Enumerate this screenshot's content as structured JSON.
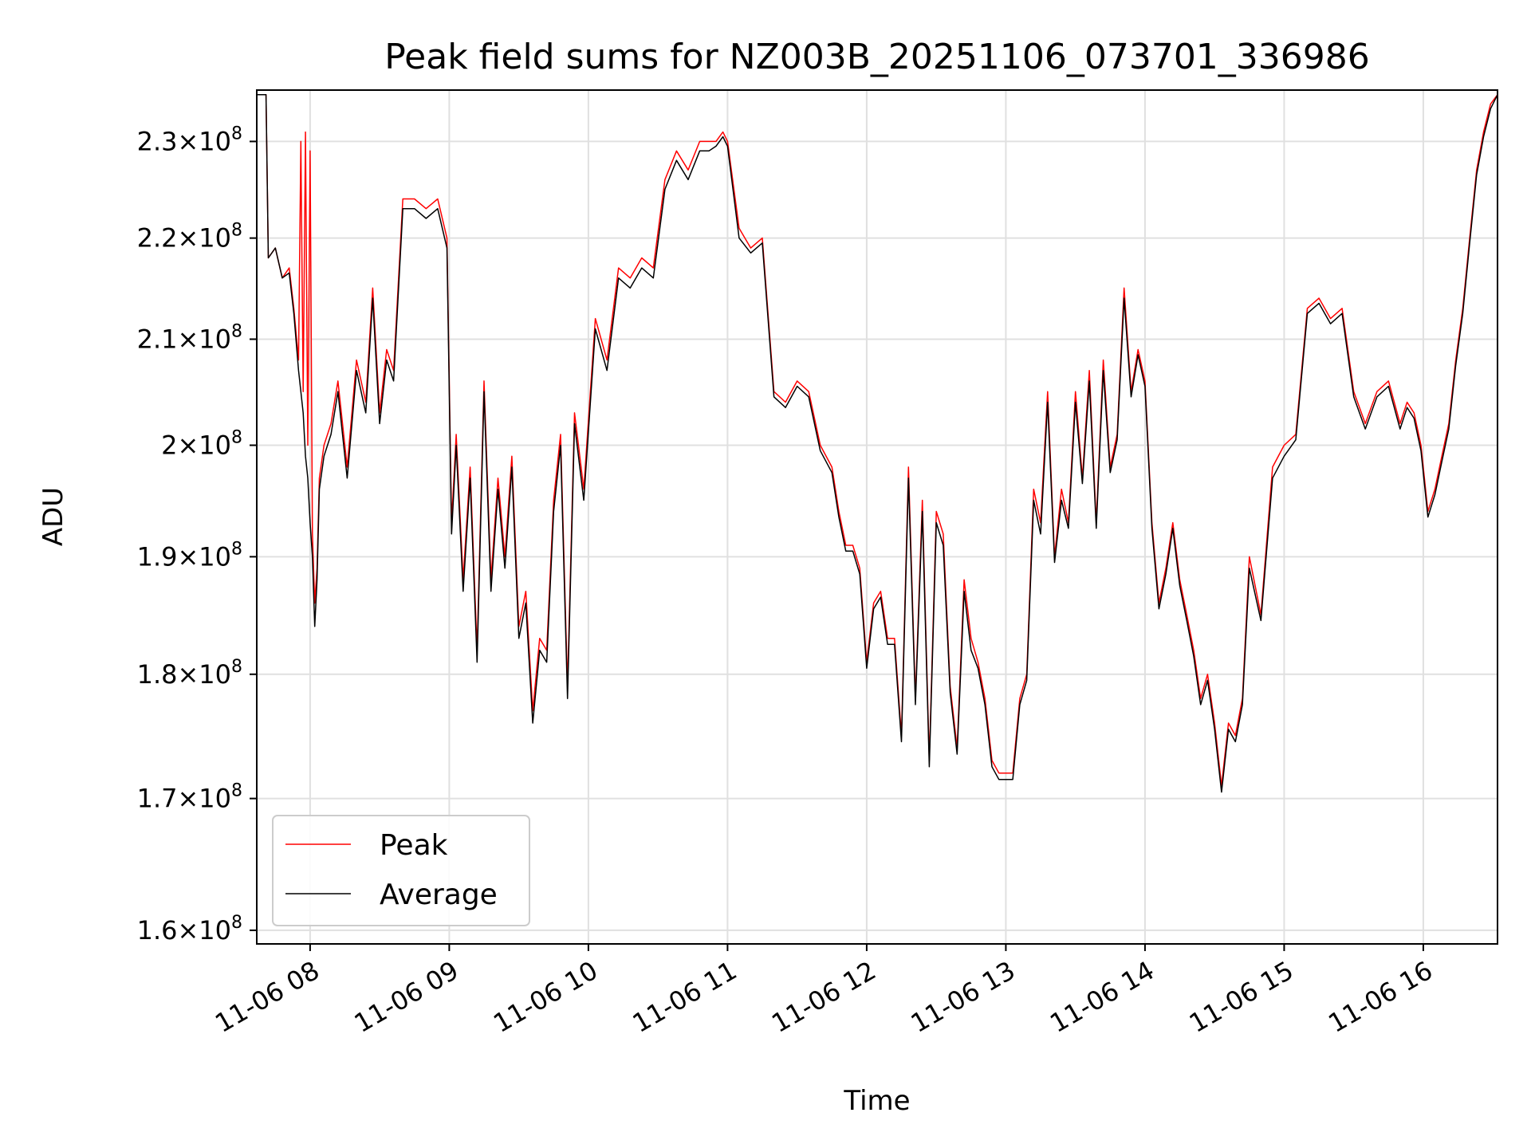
{
  "chart_data": {
    "type": "line",
    "title": "Peak field sums for NZ003B_20251106_073701_336986",
    "xlabel": "Time",
    "ylabel": "ADU",
    "y_scale": "log",
    "ylim": [
      159000000,
      235500000
    ],
    "xlim": [
      "2025-11-06 07:37",
      "2025-11-06 16:32"
    ],
    "grid": true,
    "legend_position": "lower-left",
    "colors": {
      "Peak": "#ff0000",
      "Average": "#000000"
    },
    "y_ticks": [
      {
        "value": 160000000,
        "base": "1.6",
        "exp": "8"
      },
      {
        "value": 170000000,
        "base": "1.7",
        "exp": "8"
      },
      {
        "value": 180000000,
        "base": "1.8",
        "exp": "8"
      },
      {
        "value": 190000000,
        "base": "1.9",
        "exp": "8"
      },
      {
        "value": 200000000,
        "base": "2",
        "exp": "8"
      },
      {
        "value": 210000000,
        "base": "2.1",
        "exp": "8"
      },
      {
        "value": 220000000,
        "base": "2.2",
        "exp": "8"
      },
      {
        "value": 230000000,
        "base": "2.3",
        "exp": "8"
      }
    ],
    "x_ticks": [
      {
        "value": "2025-11-06 08:00",
        "label": "11-06 08"
      },
      {
        "value": "2025-11-06 09:00",
        "label": "11-06 09"
      },
      {
        "value": "2025-11-06 10:00",
        "label": "11-06 10"
      },
      {
        "value": "2025-11-06 11:00",
        "label": "11-06 11"
      },
      {
        "value": "2025-11-06 12:00",
        "label": "11-06 12"
      },
      {
        "value": "2025-11-06 13:00",
        "label": "11-06 13"
      },
      {
        "value": "2025-11-06 14:00",
        "label": "11-06 14"
      },
      {
        "value": "2025-11-06 15:00",
        "label": "11-06 15"
      },
      {
        "value": "2025-11-06 16:00",
        "label": "11-06 16"
      }
    ],
    "series": [
      {
        "name": "Peak",
        "x": [
          "2025-11-06 07:37",
          "2025-11-06 07:41",
          "2025-11-06 07:42",
          "2025-11-06 07:45",
          "2025-11-06 07:48",
          "2025-11-06 07:51",
          "2025-11-06 07:53",
          "2025-11-06 07:55",
          "2025-11-06 07:56",
          "2025-11-06 07:57",
          "2025-11-06 07:58",
          "2025-11-06 07:59",
          "2025-11-06 08:00",
          "2025-11-06 08:01",
          "2025-11-06 08:02",
          "2025-11-06 08:03",
          "2025-11-06 08:04",
          "2025-11-06 08:06",
          "2025-11-06 08:09",
          "2025-11-06 08:12",
          "2025-11-06 08:16",
          "2025-11-06 08:20",
          "2025-11-06 08:24",
          "2025-11-06 08:27",
          "2025-11-06 08:30",
          "2025-11-06 08:33",
          "2025-11-06 08:36",
          "2025-11-06 08:40",
          "2025-11-06 08:45",
          "2025-11-06 08:50",
          "2025-11-06 08:55",
          "2025-11-06 08:59",
          "2025-11-06 09:01",
          "2025-11-06 09:03",
          "2025-11-06 09:06",
          "2025-11-06 09:09",
          "2025-11-06 09:12",
          "2025-11-06 09:15",
          "2025-11-06 09:18",
          "2025-11-06 09:21",
          "2025-11-06 09:24",
          "2025-11-06 09:27",
          "2025-11-06 09:30",
          "2025-11-06 09:33",
          "2025-11-06 09:36",
          "2025-11-06 09:39",
          "2025-11-06 09:42",
          "2025-11-06 09:45",
          "2025-11-06 09:48",
          "2025-11-06 09:51",
          "2025-11-06 09:54",
          "2025-11-06 09:58",
          "2025-11-06 10:03",
          "2025-11-06 10:08",
          "2025-11-06 10:13",
          "2025-11-06 10:18",
          "2025-11-06 10:23",
          "2025-11-06 10:28",
          "2025-11-06 10:33",
          "2025-11-06 10:38",
          "2025-11-06 10:43",
          "2025-11-06 10:48",
          "2025-11-06 10:52",
          "2025-11-06 10:55",
          "2025-11-06 10:58",
          "2025-11-06 11:00",
          "2025-11-06 11:05",
          "2025-11-06 11:10",
          "2025-11-06 11:15",
          "2025-11-06 11:20",
          "2025-11-06 11:25",
          "2025-11-06 11:30",
          "2025-11-06 11:35",
          "2025-11-06 11:40",
          "2025-11-06 11:45",
          "2025-11-06 11:48",
          "2025-11-06 11:51",
          "2025-11-06 11:54",
          "2025-11-06 11:57",
          "2025-11-06 12:00",
          "2025-11-06 12:03",
          "2025-11-06 12:06",
          "2025-11-06 12:09",
          "2025-11-06 12:12",
          "2025-11-06 12:15",
          "2025-11-06 12:18",
          "2025-11-06 12:21",
          "2025-11-06 12:24",
          "2025-11-06 12:27",
          "2025-11-06 12:30",
          "2025-11-06 12:33",
          "2025-11-06 12:36",
          "2025-11-06 12:39",
          "2025-11-06 12:42",
          "2025-11-06 12:45",
          "2025-11-06 12:48",
          "2025-11-06 12:51",
          "2025-11-06 12:54",
          "2025-11-06 12:57",
          "2025-11-06 13:00",
          "2025-11-06 13:03",
          "2025-11-06 13:06",
          "2025-11-06 13:09",
          "2025-11-06 13:12",
          "2025-11-06 13:15",
          "2025-11-06 13:18",
          "2025-11-06 13:21",
          "2025-11-06 13:24",
          "2025-11-06 13:27",
          "2025-11-06 13:30",
          "2025-11-06 13:33",
          "2025-11-06 13:36",
          "2025-11-06 13:39",
          "2025-11-06 13:42",
          "2025-11-06 13:45",
          "2025-11-06 13:48",
          "2025-11-06 13:51",
          "2025-11-06 13:54",
          "2025-11-06 13:57",
          "2025-11-06 14:00",
          "2025-11-06 14:03",
          "2025-11-06 14:06",
          "2025-11-06 14:09",
          "2025-11-06 14:12",
          "2025-11-06 14:15",
          "2025-11-06 14:18",
          "2025-11-06 14:21",
          "2025-11-06 14:24",
          "2025-11-06 14:27",
          "2025-11-06 14:30",
          "2025-11-06 14:33",
          "2025-11-06 14:36",
          "2025-11-06 14:39",
          "2025-11-06 14:42",
          "2025-11-06 14:45",
          "2025-11-06 14:50",
          "2025-11-06 14:55",
          "2025-11-06 15:00",
          "2025-11-06 15:05",
          "2025-11-06 15:10",
          "2025-11-06 15:15",
          "2025-11-06 15:20",
          "2025-11-06 15:25",
          "2025-11-06 15:30",
          "2025-11-06 15:35",
          "2025-11-06 15:40",
          "2025-11-06 15:45",
          "2025-11-06 15:50",
          "2025-11-06 15:53",
          "2025-11-06 15:56",
          "2025-11-06 15:59",
          "2025-11-06 16:02",
          "2025-11-06 16:05",
          "2025-11-06 16:08",
          "2025-11-06 16:11",
          "2025-11-06 16:14",
          "2025-11-06 16:17",
          "2025-11-06 16:20",
          "2025-11-06 16:23",
          "2025-11-06 16:26",
          "2025-11-06 16:29",
          "2025-11-06 16:32"
        ],
        "values": [
          235000000,
          235000000,
          218000000,
          219000000,
          216000000,
          217000000,
          213000000,
          208000000,
          230000000,
          205000000,
          231000000,
          200000000,
          229000000,
          192000000,
          186000000,
          189000000,
          197000000,
          200000000,
          202000000,
          206000000,
          198000000,
          208000000,
          204000000,
          215000000,
          203000000,
          209000000,
          207000000,
          224000000,
          224000000,
          223000000,
          224000000,
          220000000,
          193000000,
          201000000,
          188000000,
          198000000,
          182000000,
          206000000,
          188000000,
          197000000,
          190000000,
          199000000,
          184000000,
          187000000,
          177000000,
          183000000,
          182000000,
          195000000,
          201000000,
          179000000,
          203000000,
          196000000,
          212000000,
          208000000,
          217000000,
          216000000,
          218000000,
          217000000,
          226000000,
          229000000,
          227000000,
          230000000,
          230000000,
          230000000,
          231000000,
          230000000,
          221000000,
          219000000,
          220000000,
          205000000,
          204000000,
          206000000,
          205000000,
          200000000,
          198000000,
          194000000,
          191000000,
          191000000,
          189000000,
          181000000,
          186000000,
          187000000,
          183000000,
          183000000,
          175000000,
          198000000,
          178000000,
          195000000,
          173000000,
          194000000,
          192000000,
          179000000,
          174000000,
          188000000,
          183000000,
          181000000,
          178000000,
          173000000,
          172000000,
          172000000,
          172000000,
          178000000,
          180000000,
          196000000,
          193000000,
          205000000,
          190000000,
          196000000,
          193000000,
          205000000,
          197000000,
          207000000,
          193000000,
          208000000,
          198000000,
          201000000,
          215000000,
          205000000,
          209000000,
          206000000,
          193000000,
          186000000,
          189000000,
          193000000,
          188000000,
          185000000,
          182000000,
          178000000,
          180000000,
          176000000,
          171000000,
          176000000,
          175000000,
          178000000,
          190000000,
          185000000,
          198000000,
          200000000,
          201000000,
          213000000,
          214000000,
          212000000,
          213000000,
          205000000,
          202000000,
          205000000,
          206000000,
          202000000,
          204000000,
          203000000,
          200000000,
          194000000,
          196000000,
          199000000,
          202000000,
          208000000,
          213000000,
          220000000,
          227000000,
          231000000,
          234000000,
          235000000
        ]
      },
      {
        "name": "Average",
        "x": [
          "2025-11-06 07:37",
          "2025-11-06 07:41",
          "2025-11-06 07:42",
          "2025-11-06 07:45",
          "2025-11-06 07:48",
          "2025-11-06 07:51",
          "2025-11-06 07:53",
          "2025-11-06 07:55",
          "2025-11-06 07:56",
          "2025-11-06 07:57",
          "2025-11-06 07:58",
          "2025-11-06 07:59",
          "2025-11-06 08:00",
          "2025-11-06 08:01",
          "2025-11-06 08:02",
          "2025-11-06 08:03",
          "2025-11-06 08:04",
          "2025-11-06 08:06",
          "2025-11-06 08:09",
          "2025-11-06 08:12",
          "2025-11-06 08:16",
          "2025-11-06 08:20",
          "2025-11-06 08:24",
          "2025-11-06 08:27",
          "2025-11-06 08:30",
          "2025-11-06 08:33",
          "2025-11-06 08:36",
          "2025-11-06 08:40",
          "2025-11-06 08:45",
          "2025-11-06 08:50",
          "2025-11-06 08:55",
          "2025-11-06 08:59",
          "2025-11-06 09:01",
          "2025-11-06 09:03",
          "2025-11-06 09:06",
          "2025-11-06 09:09",
          "2025-11-06 09:12",
          "2025-11-06 09:15",
          "2025-11-06 09:18",
          "2025-11-06 09:21",
          "2025-11-06 09:24",
          "2025-11-06 09:27",
          "2025-11-06 09:30",
          "2025-11-06 09:33",
          "2025-11-06 09:36",
          "2025-11-06 09:39",
          "2025-11-06 09:42",
          "2025-11-06 09:45",
          "2025-11-06 09:48",
          "2025-11-06 09:51",
          "2025-11-06 09:54",
          "2025-11-06 09:58",
          "2025-11-06 10:03",
          "2025-11-06 10:08",
          "2025-11-06 10:13",
          "2025-11-06 10:18",
          "2025-11-06 10:23",
          "2025-11-06 10:28",
          "2025-11-06 10:33",
          "2025-11-06 10:38",
          "2025-11-06 10:43",
          "2025-11-06 10:48",
          "2025-11-06 10:52",
          "2025-11-06 10:55",
          "2025-11-06 10:58",
          "2025-11-06 11:00",
          "2025-11-06 11:05",
          "2025-11-06 11:10",
          "2025-11-06 11:15",
          "2025-11-06 11:20",
          "2025-11-06 11:25",
          "2025-11-06 11:30",
          "2025-11-06 11:35",
          "2025-11-06 11:40",
          "2025-11-06 11:45",
          "2025-11-06 11:48",
          "2025-11-06 11:51",
          "2025-11-06 11:54",
          "2025-11-06 11:57",
          "2025-11-06 12:00",
          "2025-11-06 12:03",
          "2025-11-06 12:06",
          "2025-11-06 12:09",
          "2025-11-06 12:12",
          "2025-11-06 12:15",
          "2025-11-06 12:18",
          "2025-11-06 12:21",
          "2025-11-06 12:24",
          "2025-11-06 12:27",
          "2025-11-06 12:30",
          "2025-11-06 12:33",
          "2025-11-06 12:36",
          "2025-11-06 12:39",
          "2025-11-06 12:42",
          "2025-11-06 12:45",
          "2025-11-06 12:48",
          "2025-11-06 12:51",
          "2025-11-06 12:54",
          "2025-11-06 12:57",
          "2025-11-06 13:00",
          "2025-11-06 13:03",
          "2025-11-06 13:06",
          "2025-11-06 13:09",
          "2025-11-06 13:12",
          "2025-11-06 13:15",
          "2025-11-06 13:18",
          "2025-11-06 13:21",
          "2025-11-06 13:24",
          "2025-11-06 13:27",
          "2025-11-06 13:30",
          "2025-11-06 13:33",
          "2025-11-06 13:36",
          "2025-11-06 13:39",
          "2025-11-06 13:42",
          "2025-11-06 13:45",
          "2025-11-06 13:48",
          "2025-11-06 13:51",
          "2025-11-06 13:54",
          "2025-11-06 13:57",
          "2025-11-06 14:00",
          "2025-11-06 14:03",
          "2025-11-06 14:06",
          "2025-11-06 14:09",
          "2025-11-06 14:12",
          "2025-11-06 14:15",
          "2025-11-06 14:18",
          "2025-11-06 14:21",
          "2025-11-06 14:24",
          "2025-11-06 14:27",
          "2025-11-06 14:30",
          "2025-11-06 14:33",
          "2025-11-06 14:36",
          "2025-11-06 14:39",
          "2025-11-06 14:42",
          "2025-11-06 14:45",
          "2025-11-06 14:50",
          "2025-11-06 14:55",
          "2025-11-06 15:00",
          "2025-11-06 15:05",
          "2025-11-06 15:10",
          "2025-11-06 15:15",
          "2025-11-06 15:20",
          "2025-11-06 15:25",
          "2025-11-06 15:30",
          "2025-11-06 15:35",
          "2025-11-06 15:40",
          "2025-11-06 15:45",
          "2025-11-06 15:50",
          "2025-11-06 15:53",
          "2025-11-06 15:56",
          "2025-11-06 15:59",
          "2025-11-06 16:02",
          "2025-11-06 16:05",
          "2025-11-06 16:08",
          "2025-11-06 16:11",
          "2025-11-06 16:14",
          "2025-11-06 16:17",
          "2025-11-06 16:20",
          "2025-11-06 16:23",
          "2025-11-06 16:26",
          "2025-11-06 16:29",
          "2025-11-06 16:32"
        ],
        "values": [
          235000000,
          235000000,
          218000000,
          219000000,
          216000000,
          216500000,
          212500000,
          207000000,
          205000000,
          203000000,
          199000000,
          197000000,
          193000000,
          190000000,
          184000000,
          188000000,
          196000000,
          199000000,
          201000000,
          205000000,
          197000000,
          207000000,
          203000000,
          214000000,
          202000000,
          208000000,
          206000000,
          223000000,
          223000000,
          222000000,
          223000000,
          219000000,
          192000000,
          200000000,
          187000000,
          197000000,
          181000000,
          205000000,
          187000000,
          196000000,
          189000000,
          198000000,
          183000000,
          186000000,
          176000000,
          182000000,
          181000000,
          194000000,
          200000000,
          178000000,
          202000000,
          195000000,
          211000000,
          207000000,
          216000000,
          215000000,
          217000000,
          216000000,
          225000000,
          228000000,
          226000000,
          229000000,
          229000000,
          229500000,
          230500000,
          229500000,
          220000000,
          218500000,
          219500000,
          204500000,
          203500000,
          205500000,
          204500000,
          199500000,
          197500000,
          193500000,
          190500000,
          190500000,
          188500000,
          180500000,
          185500000,
          186500000,
          182500000,
          182500000,
          174500000,
          197000000,
          177500000,
          194000000,
          172500000,
          193000000,
          191000000,
          178500000,
          173500000,
          187000000,
          182000000,
          180500000,
          177500000,
          172500000,
          171500000,
          171500000,
          171500000,
          177500000,
          179500000,
          195000000,
          192000000,
          204000000,
          189500000,
          195000000,
          192500000,
          204000000,
          196500000,
          206000000,
          192500000,
          207000000,
          197500000,
          200500000,
          214000000,
          204500000,
          208500000,
          205500000,
          192500000,
          185500000,
          188500000,
          192500000,
          187500000,
          184500000,
          181500000,
          177500000,
          179500000,
          175500000,
          170500000,
          175500000,
          174500000,
          177500000,
          189000000,
          184500000,
          197000000,
          199000000,
          200500000,
          212500000,
          213500000,
          211500000,
          212500000,
          204500000,
          201500000,
          204500000,
          205500000,
          201500000,
          203500000,
          202500000,
          199500000,
          193500000,
          195500000,
          198500000,
          201500000,
          207500000,
          212500000,
          219500000,
          226500000,
          230500000,
          233500000,
          235000000
        ]
      }
    ]
  }
}
